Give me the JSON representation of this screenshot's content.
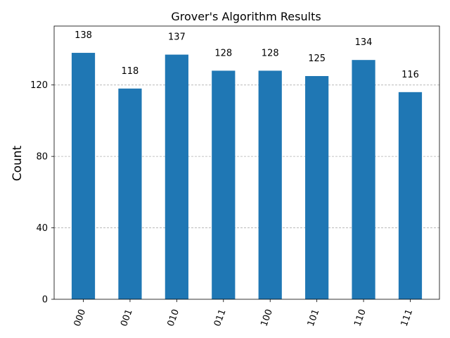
{
  "chart_data": {
    "type": "bar",
    "title": "Grover's Algorithm Results",
    "xlabel": "",
    "ylabel": "Count",
    "categories": [
      "000",
      "001",
      "010",
      "011",
      "100",
      "101",
      "110",
      "111"
    ],
    "values": [
      138,
      118,
      137,
      128,
      128,
      125,
      134,
      116
    ],
    "ylim": [
      0,
      153
    ],
    "yticks": [
      0,
      40,
      80,
      120
    ],
    "grid": "y-dashed",
    "bar_color": "#1f77b4",
    "grid_color": "#b0b0b0",
    "x_tick_rotation": -70
  }
}
